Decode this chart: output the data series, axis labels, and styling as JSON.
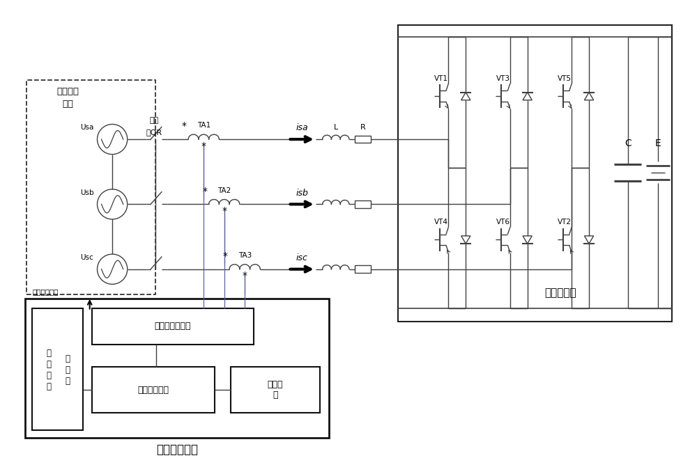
{
  "bg": "#ffffff",
  "lc": "#404040",
  "tc": "#000000",
  "labels": {
    "three_phase_1": "三相交流",
    "three_phase_2": "系统",
    "breaker": "断路",
    "breaker2": "器QR",
    "ta1": "TA1",
    "ta2": "TA2",
    "ta3": "TA3",
    "isa": "isa",
    "isb": "isb",
    "isc": "isc",
    "usa": "Usa",
    "usb": "Usb",
    "usc": "Usc",
    "L": "L",
    "R": "R",
    "C": "C",
    "E": "E",
    "vt1": "VT1",
    "vt2": "VT2",
    "vt3": "VT3",
    "vt4": "VT4",
    "vt5": "VT5",
    "vt6": "VT6",
    "relay": "继电保护装置",
    "storage": "储能变流器",
    "analog": "模拟量采集模块",
    "cj1": "采",
    "cj2": "集",
    "cj3": "模",
    "cj4": "块",
    "kgL1": "开",
    "kgL2": "关",
    "kgL3": "量",
    "cpu": "中央处理单元",
    "comm1": "通讯模",
    "comm2": "块",
    "control_exit": "控制回路出口"
  }
}
